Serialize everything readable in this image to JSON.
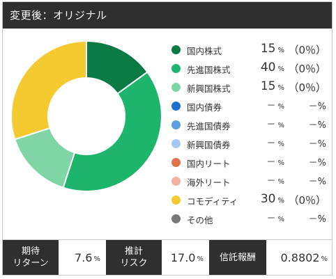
{
  "header": {
    "title": "変更後：オリジナル"
  },
  "colors": {
    "国内株式": "#0a7a45",
    "先進国株式": "#1cb56b",
    "新興国株式": "#7fd5a6",
    "国内債券": "#1f6fd1",
    "先進国債券": "#5a9ee0",
    "新興国債券": "#a6c8f0",
    "国内リート": "#e0734e",
    "海外リート": "#f3b3a2",
    "コモディティ": "#f5c930",
    "その他": "#7a7a7a"
  },
  "chart_data": {
    "type": "pie",
    "donut": true,
    "title": "",
    "categories": [
      "国内株式",
      "先進国株式",
      "新興国株式",
      "国内債券",
      "先進国債券",
      "新興国債券",
      "国内リート",
      "海外リート",
      "コモディティ",
      "その他"
    ],
    "values": [
      15,
      40,
      15,
      null,
      null,
      null,
      null,
      null,
      30,
      null
    ],
    "unit": "%",
    "legend_position": "right",
    "legend": [
      {
        "name": "国内株式",
        "value": "15",
        "value_unit": "%",
        "change": "（0％）"
      },
      {
        "name": "先進国株式",
        "value": "40",
        "value_unit": "%",
        "change": "（0％）"
      },
      {
        "name": "新興国株式",
        "value": "15",
        "value_unit": "%",
        "change": "（0％）"
      },
      {
        "name": "国内債券",
        "value": "－",
        "value_unit": "%",
        "change": "－%"
      },
      {
        "name": "先進国債券",
        "value": "－",
        "value_unit": "%",
        "change": "－%"
      },
      {
        "name": "新興国債券",
        "value": "－",
        "value_unit": "%",
        "change": "－%"
      },
      {
        "name": "国内リート",
        "value": "－",
        "value_unit": "%",
        "change": "－%"
      },
      {
        "name": "海外リート",
        "value": "－",
        "value_unit": "%",
        "change": "－%"
      },
      {
        "name": "コモディティ",
        "value": "30",
        "value_unit": "%",
        "change": "（0％）"
      },
      {
        "name": "その他",
        "value": "－",
        "value_unit": "%",
        "change": "－%"
      }
    ]
  },
  "footer": {
    "expected_return_label_1": "期待",
    "expected_return_label_2": "リターン",
    "expected_return_value": "7.6",
    "expected_return_unit": "%",
    "risk_label_1": "推計",
    "risk_label_2": "リスク",
    "risk_value": "17.0",
    "risk_unit": "%",
    "fee_label": "信託報酬",
    "fee_value": "0.8802",
    "fee_unit": "%"
  }
}
